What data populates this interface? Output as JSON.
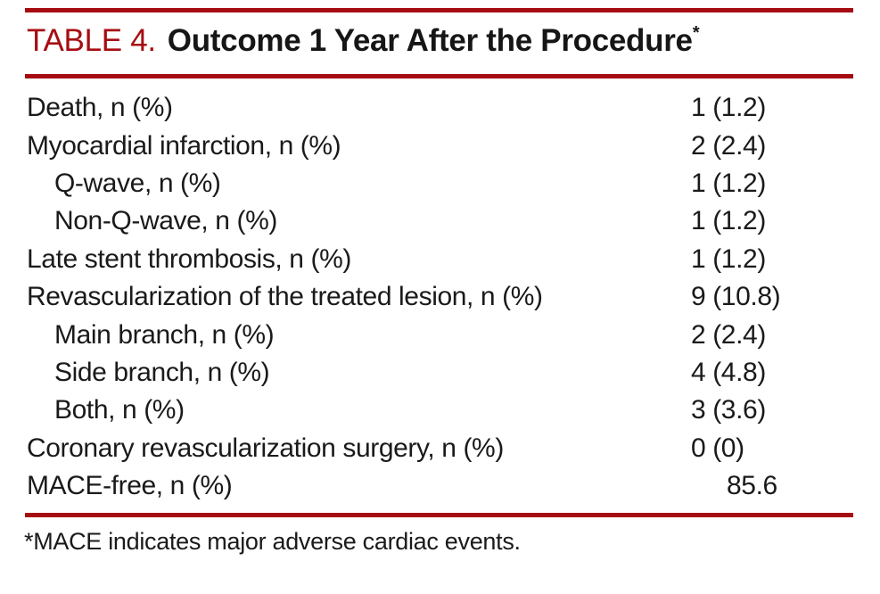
{
  "colors": {
    "rule_red": "#a60d12",
    "title_red": "#a60d12",
    "text_black": "#1a1a1a"
  },
  "title": {
    "label": "TABLE 4.",
    "text": "Outcome 1 Year After the Procedure",
    "superscript": "*"
  },
  "table": {
    "rows": [
      {
        "label": "Death, n (%)",
        "value": "1 (1.2)",
        "indent": false,
        "value_shifted": false
      },
      {
        "label": "Myocardial infarction, n (%)",
        "value": "2 (2.4)",
        "indent": false,
        "value_shifted": false
      },
      {
        "label": "Q-wave, n (%)",
        "value": "1 (1.2)",
        "indent": true,
        "value_shifted": false
      },
      {
        "label": "Non-Q-wave, n (%)",
        "value": "1 (1.2)",
        "indent": true,
        "value_shifted": false
      },
      {
        "label": "Late stent thrombosis, n (%)",
        "value": "1 (1.2)",
        "indent": false,
        "value_shifted": false
      },
      {
        "label": "Revascularization of the treated lesion, n (%)",
        "value": "9 (10.8)",
        "indent": false,
        "value_shifted": false
      },
      {
        "label": "Main branch, n (%)",
        "value": "2 (2.4)",
        "indent": true,
        "value_shifted": false
      },
      {
        "label": "Side branch, n (%)",
        "value": "4 (4.8)",
        "indent": true,
        "value_shifted": false
      },
      {
        "label": "Both, n (%)",
        "value": "3 (3.6)",
        "indent": true,
        "value_shifted": false
      },
      {
        "label": "Coronary revascularization surgery, n (%)",
        "value": "0 (0)",
        "indent": false,
        "value_shifted": false
      },
      {
        "label": "MACE-free, n (%)",
        "value": "85.6",
        "indent": false,
        "value_shifted": true
      }
    ]
  },
  "footnote": "*MACE indicates major adverse cardiac events."
}
